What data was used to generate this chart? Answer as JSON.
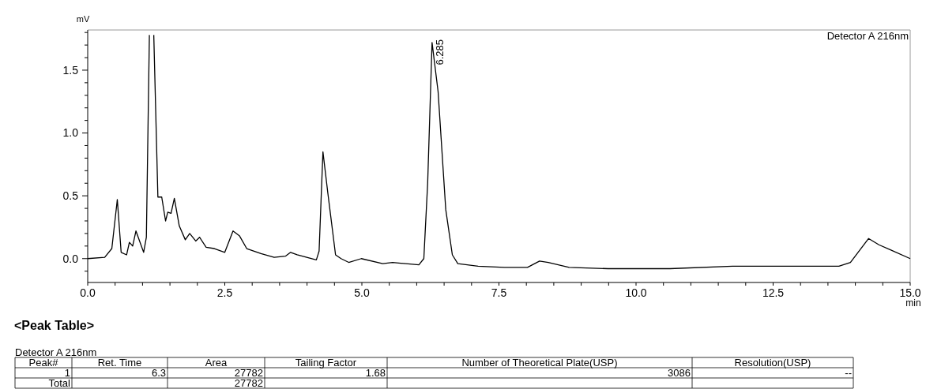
{
  "chart_data": {
    "type": "line",
    "xlabel": "min",
    "ylabel": "mV",
    "xlim": [
      0,
      15
    ],
    "ylim": [
      -0.19,
      1.82
    ],
    "xticks": [
      {
        "value": 0,
        "label": "0.0"
      },
      {
        "value": 0.5,
        "label": null
      },
      {
        "value": 1,
        "label": null
      },
      {
        "value": 1.5,
        "label": null
      },
      {
        "value": 2,
        "label": null
      },
      {
        "value": 2.5,
        "label": "2.5"
      },
      {
        "value": 3,
        "label": null
      },
      {
        "value": 3.5,
        "label": null
      },
      {
        "value": 4,
        "label": null
      },
      {
        "value": 4.5,
        "label": null
      },
      {
        "value": 5,
        "label": "5.0"
      },
      {
        "value": 5.5,
        "label": null
      },
      {
        "value": 6,
        "label": null
      },
      {
        "value": 6.5,
        "label": null
      },
      {
        "value": 7,
        "label": null
      },
      {
        "value": 7.5,
        "label": "7.5"
      },
      {
        "value": 8,
        "label": null
      },
      {
        "value": 8.5,
        "label": null
      },
      {
        "value": 9,
        "label": null
      },
      {
        "value": 9.5,
        "label": null
      },
      {
        "value": 10,
        "label": "10.0"
      },
      {
        "value": 10.5,
        "label": null
      },
      {
        "value": 11,
        "label": null
      },
      {
        "value": 11.5,
        "label": null
      },
      {
        "value": 12,
        "label": null
      },
      {
        "value": 12.5,
        "label": "12.5"
      },
      {
        "value": 13,
        "label": null
      },
      {
        "value": 13.5,
        "label": null
      },
      {
        "value": 14,
        "label": null
      },
      {
        "value": 14.5,
        "label": null
      },
      {
        "value": 15,
        "label": "15.0"
      }
    ],
    "yticks": [
      {
        "value": -0.1,
        "label": null
      },
      {
        "value": 0,
        "label": "0.0"
      },
      {
        "value": 0.1,
        "label": null
      },
      {
        "value": 0.2,
        "label": null
      },
      {
        "value": 0.3,
        "label": null
      },
      {
        "value": 0.4,
        "label": null
      },
      {
        "value": 0.5,
        "label": "0.5"
      },
      {
        "value": 0.6,
        "label": null
      },
      {
        "value": 0.7,
        "label": null
      },
      {
        "value": 0.8,
        "label": null
      },
      {
        "value": 0.9,
        "label": null
      },
      {
        "value": 1.0,
        "label": "1.0"
      },
      {
        "value": 1.1,
        "label": null
      },
      {
        "value": 1.2,
        "label": null
      },
      {
        "value": 1.3,
        "label": null
      },
      {
        "value": 1.4,
        "label": null
      },
      {
        "value": 1.5,
        "label": "1.5"
      },
      {
        "value": 1.6,
        "label": null
      },
      {
        "value": 1.7,
        "label": null
      },
      {
        "value": 1.8,
        "label": null
      }
    ],
    "grid": false,
    "marker": "none",
    "line_style": "solid",
    "series": [
      {
        "color": "#000000",
        "x": [
          0,
          0.31,
          0.44,
          0.54,
          0.61,
          0.71,
          0.76,
          0.82,
          0.88,
          1.02,
          1.07,
          1.125,
          1.16,
          1.205,
          1.28,
          1.35,
          1.42,
          1.46,
          1.52,
          1.58,
          1.67,
          1.78,
          1.86,
          1.97,
          2.04,
          2.16,
          2.31,
          2.5,
          2.65,
          2.77,
          2.9,
          3.16,
          3.4,
          3.61,
          3.7,
          3.82,
          4.17,
          4.22,
          4.29,
          4.38,
          4.52,
          4.62,
          4.76,
          4.99,
          5.38,
          5.56,
          6.04,
          6.13,
          6.2,
          6.28,
          6.39,
          6.53,
          6.65,
          6.75,
          7.12,
          7.6,
          8.02,
          8.24,
          8.4,
          8.78,
          9.49,
          10.62,
          11.76,
          13.7,
          13.91,
          14.24,
          14.43,
          14.64,
          15
        ],
        "values": [
          0,
          0.01,
          0.08,
          0.47,
          0.05,
          0.03,
          0.13,
          0.1,
          0.22,
          0.05,
          0.17,
          1.78,
          null,
          1.78,
          0.49,
          0.49,
          0.3,
          0.37,
          0.36,
          0.48,
          0.26,
          0.15,
          0.2,
          0.14,
          0.17,
          0.09,
          0.08,
          0.05,
          0.22,
          0.18,
          0.08,
          0.04,
          0.01,
          0.02,
          0.05,
          0.03,
          -0.01,
          0.06,
          0.85,
          0.52,
          0.03,
          0,
          -0.03,
          0,
          -0.04,
          -0.03,
          -0.05,
          0,
          0.6,
          1.72,
          1.33,
          0.39,
          0.03,
          -0.04,
          -0.06,
          -0.07,
          -0.07,
          -0.02,
          -0.03,
          -0.07,
          -0.08,
          -0.08,
          -0.06,
          -0.06,
          -0.03,
          0.16,
          0.11,
          0.07,
          0
        ]
      }
    ],
    "annotations": [
      {
        "text": "6.285",
        "x": 6.285,
        "y": 1.72
      },
      "Detector A 216nm",
      "<Peak Table>",
      "Detector A 216nm",
      "Peak#",
      "Ret. Time",
      "Area",
      "Tailing Factor",
      "Number of Theoretical Plate(USP)",
      "Resolution(USP)",
      "1",
      "6.3",
      "27782",
      "1.68",
      "3086",
      "--",
      "Total",
      null,
      "27782",
      null,
      null,
      null
    ]
  }
}
